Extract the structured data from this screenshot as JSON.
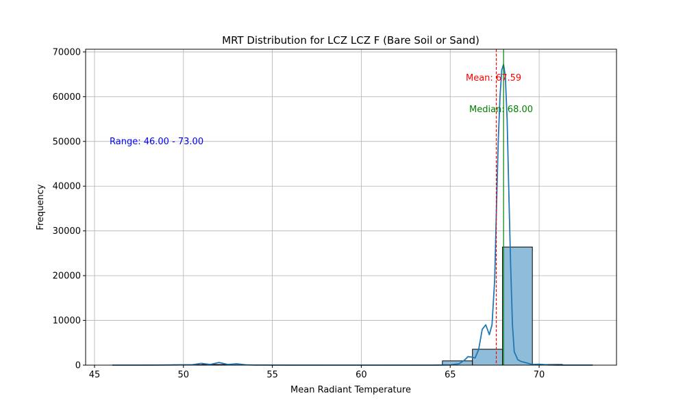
{
  "chart_data": {
    "type": "bar",
    "title": "MRT Distribution for LCZ LCZ F (Bare Soil or Sand)",
    "xlabel": "Mean Radiant Temperature",
    "ylabel": "Frequency",
    "xlim": [
      44.5,
      74.35
    ],
    "ylim": [
      0,
      70600
    ],
    "x_ticks": [
      45,
      50,
      55,
      60,
      65,
      70
    ],
    "y_ticks": [
      0,
      10000,
      20000,
      30000,
      40000,
      50000,
      60000,
      70000
    ],
    "grid": true,
    "histogram": {
      "bin_edges": [
        46.0,
        47.69,
        49.38,
        51.06,
        52.75,
        54.44,
        56.12,
        57.81,
        59.5,
        61.19,
        62.88,
        64.56,
        66.25,
        67.94,
        69.62,
        71.31,
        73.0
      ],
      "counts": [
        15,
        25,
        90,
        140,
        40,
        10,
        8,
        5,
        5,
        8,
        20,
        950,
        3550,
        26400,
        150,
        40
      ],
      "color": "#8fbcd9"
    },
    "kde": {
      "color": "#1f77b4",
      "x": [
        46.0,
        48.0,
        49.5,
        50.5,
        51.0,
        51.5,
        52.0,
        52.5,
        53.0,
        53.5,
        54.0,
        56.0,
        60.0,
        64.0,
        65.0,
        65.5,
        65.8,
        66.0,
        66.2,
        66.4,
        66.6,
        66.8,
        67.0,
        67.2,
        67.35,
        67.5,
        67.6,
        67.7,
        67.8,
        67.9,
        68.0,
        68.1,
        68.2,
        68.3,
        68.4,
        68.5,
        68.6,
        68.8,
        69.0,
        69.3,
        69.6,
        70.0,
        70.5,
        71.0,
        72.0,
        73.0
      ],
      "y": [
        0,
        0,
        50,
        100,
        400,
        150,
        600,
        150,
        300,
        80,
        20,
        0,
        0,
        0,
        50,
        300,
        1100,
        1900,
        1800,
        1600,
        3500,
        8000,
        9000,
        6800,
        9000,
        19000,
        35000,
        50000,
        60000,
        66000,
        67200,
        64500,
        55000,
        38000,
        22000,
        9000,
        3000,
        1200,
        800,
        500,
        150,
        200,
        50,
        0,
        0,
        0
      ]
    },
    "mean_line": {
      "value": 67.59,
      "color": "#ff0000",
      "label": "Mean: 67.59"
    },
    "median_line": {
      "value": 68.0,
      "color": "#008000",
      "label": "Median: 68.00"
    },
    "range_annotation": {
      "text": "Range: 46.00 - 73.00",
      "color": "#0000ff"
    }
  }
}
